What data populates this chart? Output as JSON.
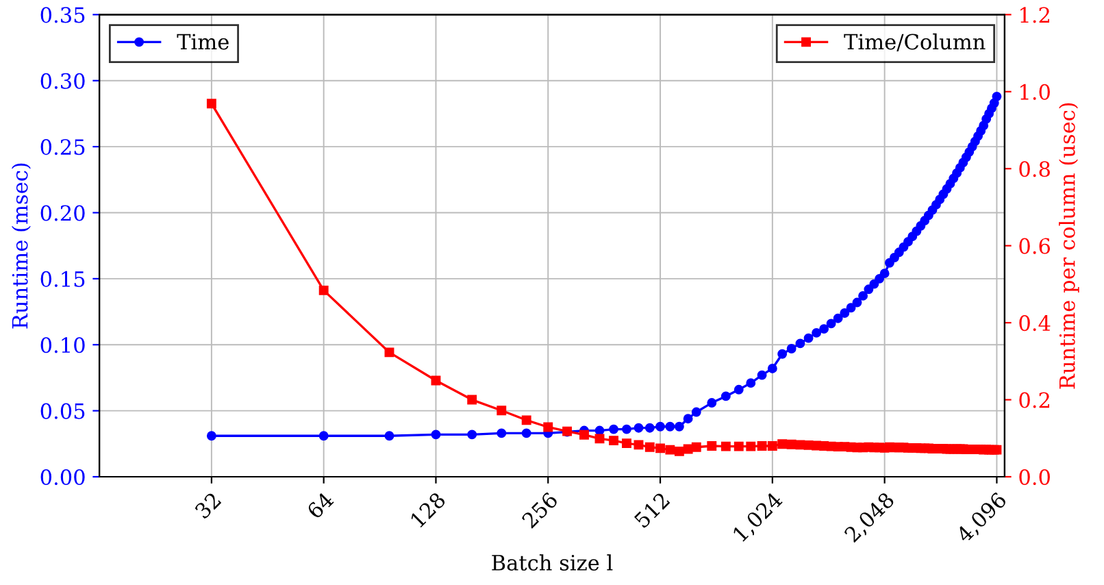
{
  "chart_data": {
    "type": "line",
    "xlabel": "Batch size l",
    "ylabel": "Runtime (msec)",
    "y2label": "Runtime per column (usec)",
    "log": "x",
    "grid": true,
    "legend": "top",
    "line_style": "solid",
    "xlim": [
      16,
      4300
    ],
    "xticks": [
      32,
      64,
      128,
      256,
      512,
      {
        "value": 1024,
        "label": "1,024"
      },
      {
        "value": 2048,
        "label": "2,048"
      },
      {
        "value": 4096,
        "label": "4,096"
      }
    ],
    "ylim": [
      0,
      0.35
    ],
    "yticks": [
      {
        "value": 0,
        "label": "0.00"
      },
      0.05,
      {
        "value": 0.1,
        "label": "0.10"
      },
      0.15,
      {
        "value": 0.2,
        "label": "0.20"
      },
      0.25,
      {
        "value": 0.3,
        "label": "0.30"
      },
      0.35
    ],
    "y2lim": [
      0,
      1.2
    ],
    "y2ticks": [
      {
        "value": 0,
        "label": "0.0"
      },
      0.2,
      0.4,
      0.6,
      0.8,
      {
        "value": 1,
        "label": "1.0"
      },
      1.2
    ],
    "x": [
      32,
      64,
      96,
      128,
      160,
      192,
      224,
      256,
      288,
      320,
      352,
      384,
      416,
      448,
      480,
      512,
      544,
      576,
      608,
      640,
      704,
      768,
      832,
      896,
      960,
      1024,
      1088,
      1152,
      1216,
      1280,
      1344,
      1408,
      1472,
      1536,
      1600,
      1664,
      1728,
      1792,
      1856,
      1920,
      1984,
      2048,
      2112,
      2176,
      2240,
      2304,
      2368,
      2432,
      2496,
      2560,
      2624,
      2688,
      2752,
      2816,
      2880,
      2944,
      3008,
      3072,
      3136,
      3200,
      3264,
      3328,
      3392,
      3456,
      3520,
      3584,
      3648,
      3712,
      3776,
      3840,
      3904,
      3968,
      4032,
      4096
    ],
    "series": [
      {
        "name": "Time",
        "color": "#0000ff",
        "marker": "circle",
        "values": [
          0.031,
          0.031,
          0.031,
          0.032,
          0.032,
          0.033,
          0.033,
          0.033,
          0.034,
          0.035,
          0.035,
          0.036,
          0.036,
          0.037,
          0.037,
          0.038,
          0.038,
          0.038,
          0.044,
          0.049,
          0.056,
          0.061,
          0.066,
          0.071,
          0.077,
          0.082,
          0.093,
          0.097,
          0.101,
          0.105,
          0.109,
          0.112,
          0.116,
          0.12,
          0.124,
          0.128,
          0.132,
          0.137,
          0.142,
          0.146,
          0.15,
          0.154,
          0.162,
          0.166,
          0.17,
          0.174,
          0.178,
          0.182,
          0.186,
          0.19,
          0.194,
          0.198,
          0.202,
          0.206,
          0.21,
          0.214,
          0.218,
          0.222,
          0.226,
          0.23,
          0.234,
          0.238,
          0.242,
          0.246,
          0.25,
          0.254,
          0.258,
          0.262,
          0.266,
          0.271,
          0.275,
          0.279,
          0.283,
          0.288
        ]
      },
      {
        "name": "Time/Column",
        "color": "#ff0000",
        "marker": "square",
        "axis": "y2",
        "values": [
          0.969,
          0.484,
          0.323,
          0.25,
          0.2,
          0.172,
          0.147,
          0.129,
          0.118,
          0.109,
          0.099,
          0.094,
          0.087,
          0.083,
          0.077,
          0.074,
          0.07,
          0.066,
          0.072,
          0.077,
          0.08,
          0.079,
          0.079,
          0.079,
          0.08,
          0.08,
          0.085,
          0.084,
          0.083,
          0.082,
          0.081,
          0.08,
          0.079,
          0.078,
          0.078,
          0.077,
          0.076,
          0.076,
          0.077,
          0.076,
          0.076,
          0.075,
          0.077,
          0.076,
          0.076,
          0.076,
          0.075,
          0.075,
          0.075,
          0.074,
          0.074,
          0.074,
          0.073,
          0.073,
          0.073,
          0.073,
          0.072,
          0.072,
          0.072,
          0.072,
          0.072,
          0.072,
          0.071,
          0.071,
          0.071,
          0.071,
          0.071,
          0.071,
          0.07,
          0.071,
          0.07,
          0.07,
          0.07,
          0.07
        ]
      }
    ]
  }
}
